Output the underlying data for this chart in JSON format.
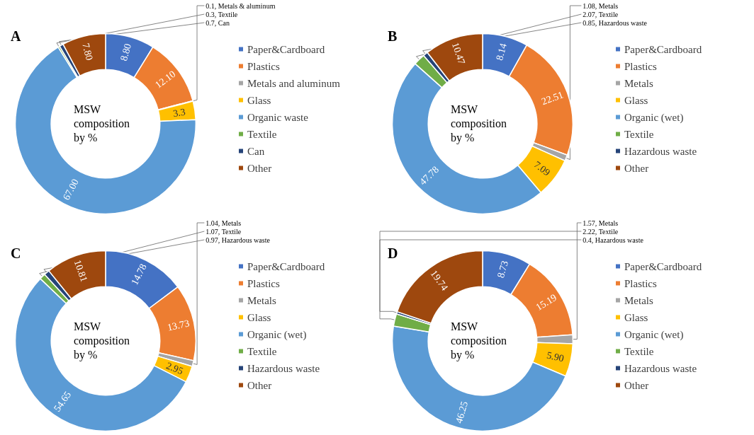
{
  "chart_data": [
    {
      "type": "donut",
      "title": "A",
      "annotations": [
        "MSW composition by %"
      ],
      "legend": "right",
      "categories": [
        "Paper&Cardboard",
        "Plastics",
        "Metals and aluminum",
        "Glass",
        "Organic waste",
        "Textile",
        "Can",
        "Other"
      ],
      "values": [
        8.8,
        12.1,
        0.1,
        3.3,
        67.0,
        0.3,
        0.7,
        7.8
      ],
      "value_labels": [
        "8.80",
        "12.10",
        "0.1, Metals & aluminum",
        "3.3",
        "67.00",
        "0.3, Textile",
        "0.7, Can",
        "7.80"
      ],
      "colors": [
        "#4472c4",
        "#ed7d31",
        "#a5a5a5",
        "#ffc000",
        "#5b9bd5",
        "#70ad47",
        "#264478",
        "#9e480e"
      ]
    },
    {
      "type": "donut",
      "title": "B",
      "annotations": [
        "MSW composition by %"
      ],
      "legend": "right",
      "categories": [
        "Paper&Cardboard",
        "Plastics",
        "Metals",
        "Glass",
        "Organic (wet)",
        "Textile",
        "Hazardous waste",
        "Other"
      ],
      "values": [
        8.14,
        22.51,
        1.08,
        7.09,
        47.78,
        2.07,
        0.85,
        10.47
      ],
      "value_labels": [
        "8.14",
        "22.51",
        "1.08, Metals",
        "7.09",
        "47.78",
        "2.07, Textile",
        "0.85, Hazardous waste",
        "10.47"
      ],
      "colors": [
        "#4472c4",
        "#ed7d31",
        "#a5a5a5",
        "#ffc000",
        "#5b9bd5",
        "#70ad47",
        "#264478",
        "#9e480e"
      ]
    },
    {
      "type": "donut",
      "title": "C",
      "annotations": [
        "MSW composition by %"
      ],
      "legend": "right",
      "categories": [
        "Paper&Cardboard",
        "Plastics",
        "Metals",
        "Glass",
        "Organic (wet)",
        "Textile",
        "Hazardous waste",
        "Other"
      ],
      "values": [
        14.78,
        13.73,
        1.04,
        2.95,
        54.65,
        1.07,
        0.97,
        10.81
      ],
      "value_labels": [
        "14.78",
        "13.73",
        "1.04, Metals",
        "2.95",
        "54.65",
        "1.07, Textile",
        "0.97, Hazardous waste",
        "10.81"
      ],
      "colors": [
        "#4472c4",
        "#ed7d31",
        "#a5a5a5",
        "#ffc000",
        "#5b9bd5",
        "#70ad47",
        "#264478",
        "#9e480e"
      ]
    },
    {
      "type": "donut",
      "title": "D",
      "annotations": [
        "MSW composition by %"
      ],
      "legend": "right",
      "categories": [
        "Paper&Cardboard",
        "Plastics",
        "Metals",
        "Glass",
        "Organic (wet)",
        "Textile",
        "Hazardous waste",
        "Other"
      ],
      "values": [
        8.73,
        15.19,
        1.57,
        5.9,
        46.25,
        2.22,
        0.4,
        19.74
      ],
      "value_labels": [
        "8.73",
        "15.19",
        "1.57, Metals",
        "5.90",
        "46.25",
        "2.22, Textile",
        "0.4, Hazardous waste",
        "19.74"
      ],
      "colors": [
        "#4472c4",
        "#ed7d31",
        "#a5a5a5",
        "#ffc000",
        "#5b9bd5",
        "#70ad47",
        "#264478",
        "#9e480e"
      ]
    }
  ]
}
